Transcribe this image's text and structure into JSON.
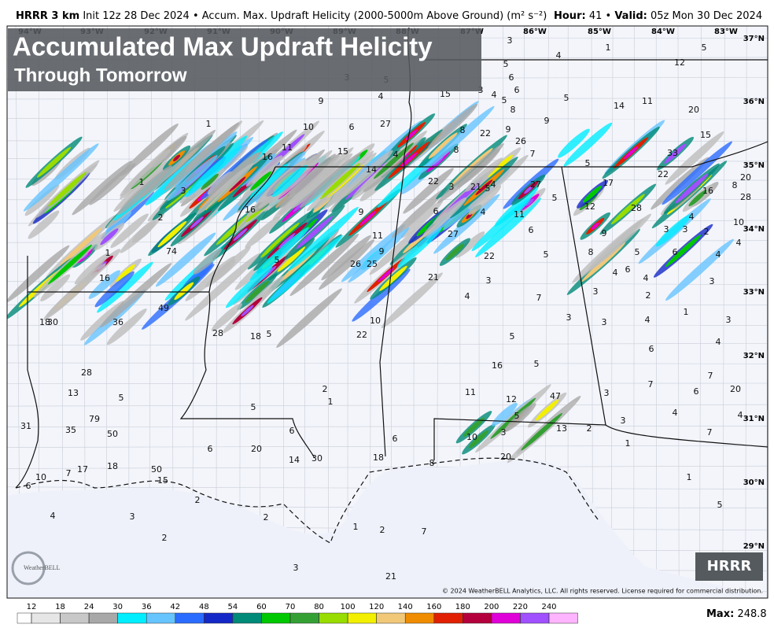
{
  "header": {
    "model": "HRRR 3 km",
    "init": "Init 12z 28 Dec 2024",
    "separator": "•",
    "field": "Accum. Max. Updraft Helicity (2000-5000m Above Ground) (m² s⁻²)",
    "hour_label": "Hour:",
    "hour": 41,
    "valid_label": "Valid:",
    "valid": "05z Mon 30 Dec 2024"
  },
  "overlay": {
    "title": "Accumulated Max Updraft Helicity",
    "subtitle": "Through Tomorrow"
  },
  "longitudes": [
    "94°W",
    "93°W",
    "92°W",
    "91°W",
    "90°W",
    "89°W",
    "88°W",
    "87°W",
    "86°W",
    "85°W",
    "84°W",
    "83°W"
  ],
  "latitudes": [
    "37°N",
    "36°N",
    "35°N",
    "34°N",
    "33°N",
    "32°N",
    "31°N",
    "30°N",
    "29°N"
  ],
  "map_values": [
    3,
    4,
    1,
    5,
    12,
    5,
    6,
    6,
    3,
    5,
    15,
    3,
    4,
    5,
    8,
    5,
    14,
    11,
    20,
    9,
    4,
    1,
    10,
    6,
    27,
    8,
    22,
    9,
    9,
    26,
    11,
    15,
    4,
    8,
    7,
    15,
    33,
    16,
    14,
    22,
    3,
    21,
    5,
    4,
    27,
    5,
    17,
    22,
    16,
    8,
    20,
    28,
    1,
    3,
    2,
    16,
    9,
    6,
    4,
    11,
    5,
    12,
    28,
    4,
    10,
    1,
    74,
    5,
    11,
    9,
    26,
    25,
    27,
    6,
    22,
    5,
    9,
    5,
    8,
    6,
    4,
    3,
    3,
    2,
    4,
    16,
    21,
    3,
    4,
    6,
    4,
    3,
    4,
    7,
    3,
    2,
    1,
    3,
    49,
    36,
    18,
    30,
    10,
    22,
    18,
    5,
    28,
    3,
    3,
    4,
    4,
    5,
    6,
    16,
    5,
    7,
    28,
    13,
    5,
    2,
    1,
    5,
    11,
    12,
    47,
    3,
    7,
    6,
    20,
    4,
    4,
    79,
    31,
    35,
    50,
    6,
    5,
    13,
    2,
    3,
    3,
    10,
    7,
    20,
    6,
    6,
    14,
    30,
    18,
    8,
    20,
    1,
    17,
    18,
    50,
    15,
    10,
    7,
    6,
    1,
    5,
    2,
    4,
    3,
    2,
    2,
    1,
    2,
    7,
    3,
    21
  ],
  "colorbar": {
    "ticks": [
      12,
      18,
      24,
      30,
      36,
      42,
      48,
      54,
      60,
      70,
      80,
      100,
      120,
      140,
      160,
      180,
      200,
      220,
      240
    ],
    "colors": [
      "#ffffff",
      "#e6e6e6",
      "#c8c8c8",
      "#a8a8a8",
      "#00eeff",
      "#66c4ff",
      "#2a6cff",
      "#1428c8",
      "#008a78",
      "#00c800",
      "#34a034",
      "#98dc00",
      "#f2f000",
      "#f0c878",
      "#f08c00",
      "#e02000",
      "#b4003c",
      "#e000d8",
      "#a050ff",
      "#ffb4ff"
    ]
  },
  "badge": "HRRR",
  "logo": "WeatherBELL",
  "copyright": "© 2024 WeatherBELL Analytics, LLC. All rights reserved. License required for commercial distribution.",
  "max": {
    "label": "Max:",
    "value": 248.8
  }
}
